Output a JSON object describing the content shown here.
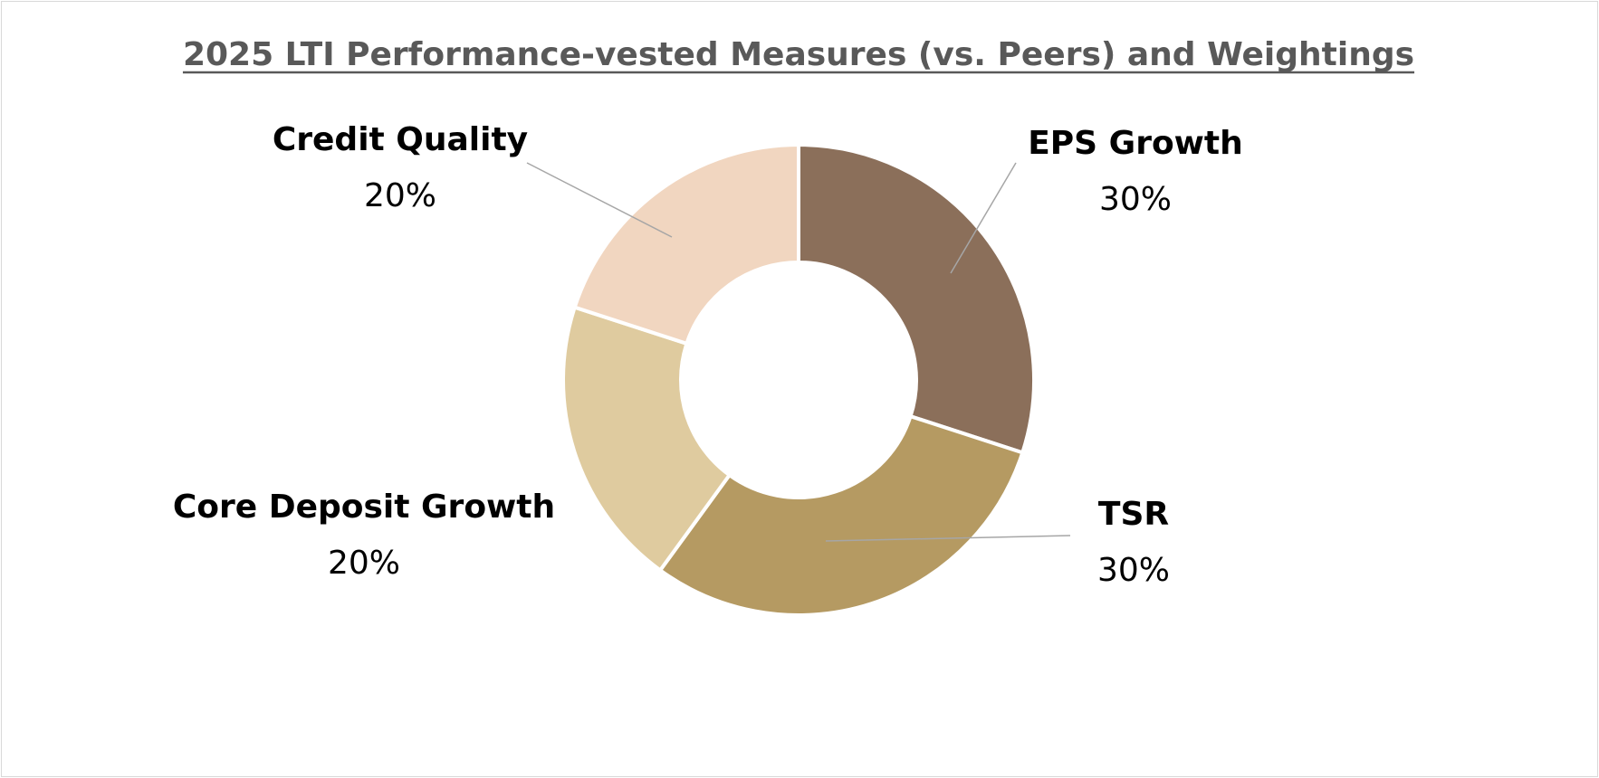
{
  "chart_data": {
    "type": "pie",
    "variant": "donut",
    "title": "2025 LTI Performance-vested Measures (vs. Peers) and Weightings",
    "title_underlined": true,
    "legend": "none",
    "slices": [
      {
        "label": "EPS Growth",
        "value": 30,
        "value_label": "30%",
        "color": "#8b6f5a"
      },
      {
        "label": "TSR",
        "value": 30,
        "value_label": "30%",
        "color": "#b59a62"
      },
      {
        "label": "Core Deposit Growth",
        "value": 20,
        "value_label": "20%",
        "color": "#dfcb9f"
      },
      {
        "label": "Credit Quality",
        "value": 20,
        "value_label": "20%",
        "color": "#f1d6c0"
      }
    ]
  }
}
